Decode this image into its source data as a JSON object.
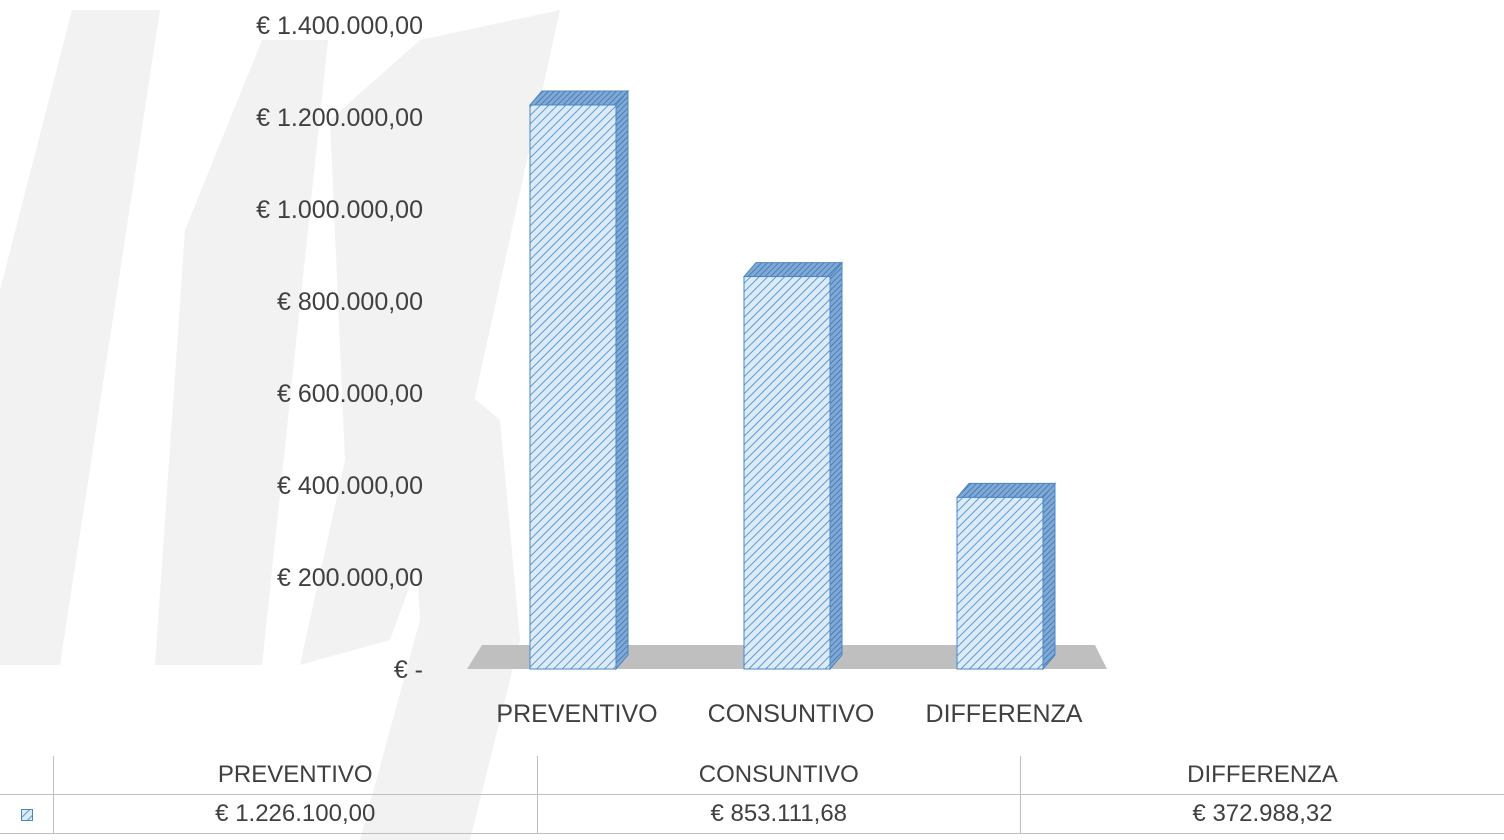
{
  "chart_data": {
    "type": "bar",
    "style": "3d-column",
    "categories": [
      "PREVENTIVO",
      "CONSUNTIVO",
      "DIFFERENZA"
    ],
    "series": [
      {
        "values": [
          1226100.0,
          853111.68,
          372988.32
        ]
      }
    ],
    "value_labels": [
      "€ 1.226.100,00",
      "€ 853.111,68",
      "€ 372.988,32"
    ],
    "ylim": [
      0,
      1400000
    ],
    "yticks": [
      0,
      200000,
      400000,
      600000,
      800000,
      1000000,
      1200000,
      1400000
    ],
    "ytick_labels": [
      "€ -",
      "€ 200.000,00",
      "€ 400.000,00",
      "€ 600.000,00",
      "€ 800.000,00",
      "€ 1.000.000,00",
      "€ 1.200.000,00",
      "€ 1.400.000,00"
    ],
    "grid": false,
    "legend": "data-table-below",
    "colors": {
      "bar_fill": "#ddeaf7",
      "bar_hatch": "#5b9bd5",
      "bar_edge": "#4a86c5",
      "floor": "#bfbfbf",
      "text": "#404040",
      "watermark": "#f2f2f2"
    }
  },
  "table": {
    "header": [
      "PREVENTIVO",
      "CONSUNTIVO",
      "DIFFERENZA"
    ],
    "rows": [
      {
        "key_icon": "hatched-legend-key-icon",
        "values": [
          "€ 1.226.100,00",
          "€ 853.111,68",
          "€ 372.988,32"
        ]
      }
    ]
  }
}
